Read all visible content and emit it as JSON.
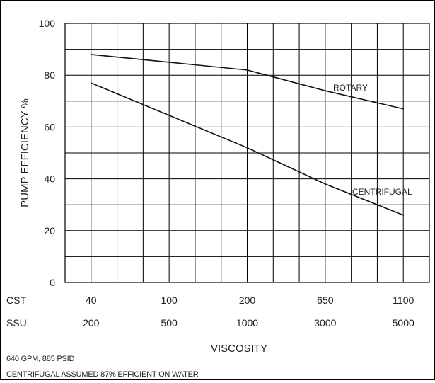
{
  "chart_data": {
    "type": "line",
    "xlabel": "VISCOSITY",
    "ylabel": "PUMP EFFICIENCY %",
    "ylim": [
      0,
      100
    ],
    "y_ticks": [
      "0",
      "20",
      "40",
      "60",
      "80",
      "100"
    ],
    "x_scale_rows": [
      {
        "name": "CST",
        "values": [
          "40",
          "100",
          "200",
          "650",
          "1100"
        ]
      },
      {
        "name": "SSU",
        "values": [
          "200",
          "500",
          "1000",
          "3000",
          "5000"
        ]
      }
    ],
    "grid": true,
    "series": [
      {
        "name": "ROTARY",
        "x": [
          "40",
          "200",
          "650",
          "1100"
        ],
        "y": [
          88,
          82,
          74,
          67
        ]
      },
      {
        "name": "CENTRIFUGAL",
        "x": [
          "40",
          "200",
          "650",
          "1100"
        ],
        "y": [
          77,
          52,
          38,
          26
        ]
      }
    ],
    "notes": [
      "640 GPM, 885 PSID",
      "CENTRIFUGAL ASSUMED 87% EFFICIENT ON WATER"
    ]
  }
}
